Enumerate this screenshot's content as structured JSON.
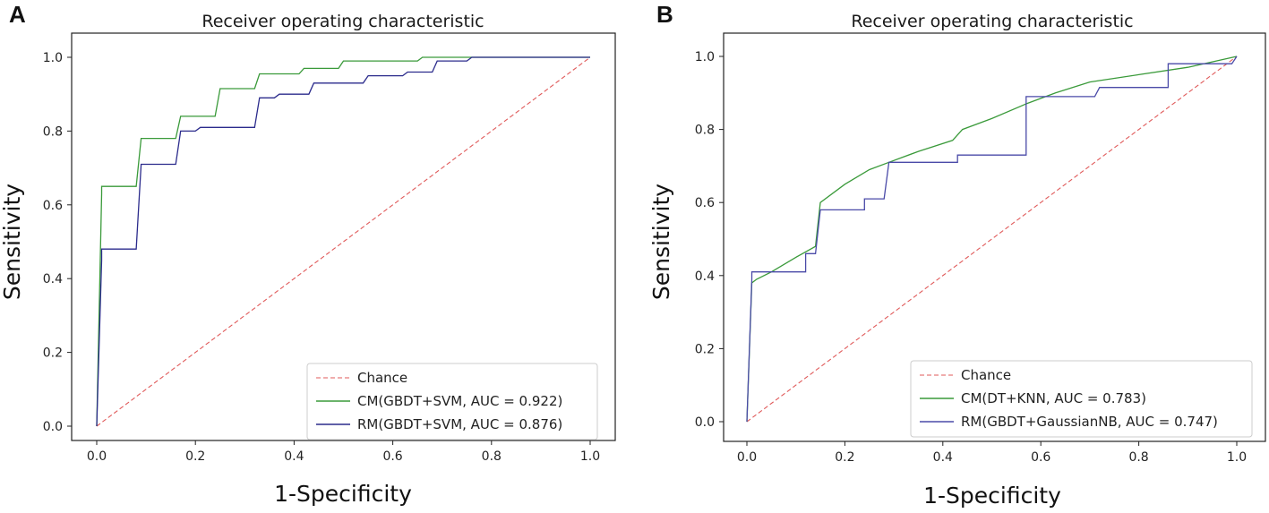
{
  "chart_data": [
    {
      "panel_label": "A",
      "type": "line",
      "title": "Receiver operating characteristic",
      "xlabel": "1-Specificity",
      "ylabel": "Sensitivity",
      "xlim": [
        0,
        1
      ],
      "ylim": [
        0,
        1
      ],
      "xticks": [
        "0.0",
        "0.2",
        "0.4",
        "0.6",
        "0.8",
        "1.0"
      ],
      "yticks": [
        "0.0",
        "0.2",
        "0.4",
        "0.6",
        "0.8",
        "1.0"
      ],
      "legend_position": "bottom-right",
      "series": [
        {
          "name": "Chance",
          "color": "#e05a5a",
          "style": "dashed",
          "x": [
            0,
            1
          ],
          "y": [
            0,
            1
          ]
        },
        {
          "name": "CM(GBDT+SVM, AUC = 0.922)",
          "color": "#3a9a3a",
          "style": "solid",
          "x": [
            0,
            0.01,
            0.01,
            0.08,
            0.09,
            0.16,
            0.17,
            0.24,
            0.25,
            0.32,
            0.33,
            0.41,
            0.42,
            0.49,
            0.5,
            0.65,
            0.66,
            1.0
          ],
          "y": [
            0,
            0.63,
            0.65,
            0.65,
            0.78,
            0.78,
            0.84,
            0.84,
            0.915,
            0.915,
            0.955,
            0.955,
            0.97,
            0.97,
            0.99,
            0.99,
            1.0,
            1.0
          ]
        },
        {
          "name": "RM(GBDT+SVM, AUC = 0.876)",
          "color": "#2b2b8c",
          "style": "solid",
          "x": [
            0,
            0.01,
            0.01,
            0.08,
            0.09,
            0.16,
            0.17,
            0.2,
            0.21,
            0.32,
            0.33,
            0.36,
            0.37,
            0.43,
            0.44,
            0.54,
            0.55,
            0.62,
            0.63,
            0.68,
            0.69,
            0.75,
            0.76,
            1.0
          ],
          "y": [
            0,
            0.45,
            0.48,
            0.48,
            0.71,
            0.71,
            0.8,
            0.8,
            0.81,
            0.81,
            0.89,
            0.89,
            0.9,
            0.9,
            0.93,
            0.93,
            0.95,
            0.95,
            0.96,
            0.96,
            0.99,
            0.99,
            1.0,
            1.0
          ]
        }
      ]
    },
    {
      "panel_label": "B",
      "type": "line",
      "title": "Receiver operating characteristic",
      "xlabel": "1-Specificity",
      "ylabel": "Sensitivity",
      "xlim": [
        0,
        1
      ],
      "ylim": [
        0,
        1
      ],
      "xticks": [
        "0.0",
        "0.2",
        "0.4",
        "0.6",
        "0.8",
        "1.0"
      ],
      "yticks": [
        "0.0",
        "0.2",
        "0.4",
        "0.6",
        "0.8",
        "1.0"
      ],
      "legend_position": "bottom-right",
      "series": [
        {
          "name": "Chance",
          "color": "#e05a5a",
          "style": "dashed",
          "x": [
            0,
            1
          ],
          "y": [
            0,
            1
          ]
        },
        {
          "name": "CM(DT+KNN, AUC = 0.783)",
          "color": "#3a9a3a",
          "style": "solid",
          "x": [
            0,
            0.01,
            0.02,
            0.05,
            0.1,
            0.14,
            0.15,
            0.2,
            0.25,
            0.29,
            0.35,
            0.42,
            0.44,
            0.5,
            0.57,
            0.63,
            0.7,
            0.8,
            0.9,
            1.0
          ],
          "y": [
            0,
            0.38,
            0.39,
            0.41,
            0.45,
            0.48,
            0.6,
            0.65,
            0.69,
            0.71,
            0.74,
            0.77,
            0.8,
            0.83,
            0.87,
            0.9,
            0.93,
            0.95,
            0.97,
            1.0
          ]
        },
        {
          "name": "RM(GBDT+GaussianNB, AUC = 0.747)",
          "color": "#4a4aa8",
          "style": "solid",
          "x": [
            0,
            0.01,
            0.01,
            0.12,
            0.12,
            0.14,
            0.15,
            0.24,
            0.24,
            0.28,
            0.29,
            0.43,
            0.43,
            0.57,
            0.57,
            0.71,
            0.72,
            0.86,
            0.86,
            0.99,
            1.0
          ],
          "y": [
            0,
            0.39,
            0.41,
            0.41,
            0.46,
            0.46,
            0.58,
            0.58,
            0.61,
            0.61,
            0.71,
            0.71,
            0.73,
            0.73,
            0.89,
            0.89,
            0.915,
            0.915,
            0.98,
            0.98,
            1.0
          ]
        }
      ]
    }
  ]
}
